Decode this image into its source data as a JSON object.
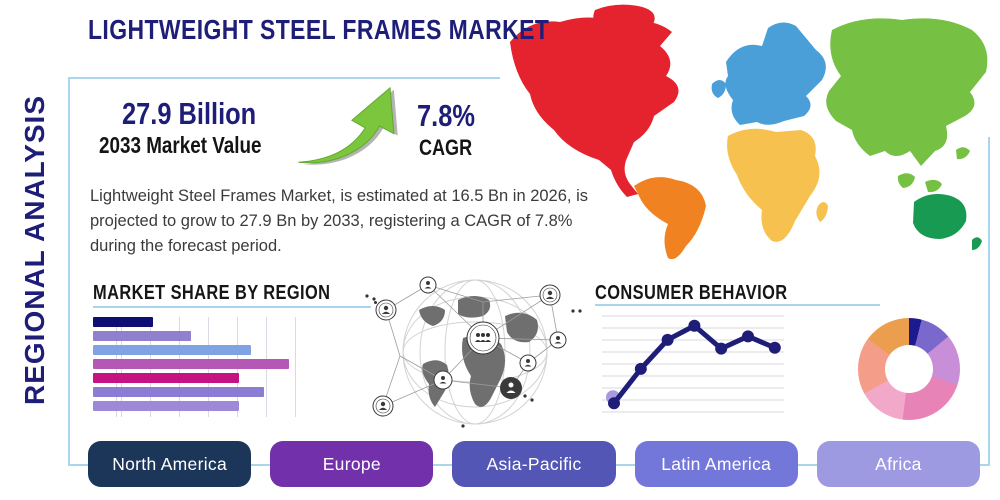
{
  "title": "LIGHTWEIGHT STEEL FRAMES MARKET",
  "sidebar_label": "REGIONAL ANALYSIS",
  "stats": {
    "market_value": "27.9 Billion",
    "market_value_label": "2033 Market Value",
    "cagr_value": "7.8%",
    "cagr_label": "CAGR"
  },
  "description": "Lightweight Steel Frames Market, is estimated at 16.5 Bn in 2026, is projected to grow to 27.9 Bn by 2033, registering a CAGR of 7.8% during the forecast period.",
  "sections": {
    "market_share_title": "MARKET SHARE BY REGION",
    "consumer_behavior_title": "CONSUMER BEHAVIOR"
  },
  "colors": {
    "navy_text": "#1e1e78",
    "panel_border": "#a9d6ea",
    "arrow_green": "#7cc63e"
  },
  "map": {
    "regions": [
      {
        "id": "north-america",
        "name": "North America",
        "color": "#e4232e"
      },
      {
        "id": "south-america",
        "name": "South America",
        "color": "#f08221"
      },
      {
        "id": "europe",
        "name": "Europe",
        "color": "#4a9fd8"
      },
      {
        "id": "africa",
        "name": "Africa",
        "color": "#f6c14e"
      },
      {
        "id": "asia",
        "name": "Asia",
        "color": "#76c043"
      },
      {
        "id": "australia",
        "name": "Australia",
        "color": "#199a52"
      }
    ]
  },
  "chart_data": [
    {
      "type": "bar",
      "title": "MARKET SHARE BY REGION",
      "orientation": "horizontal",
      "categories": [
        "",
        "",
        "",
        "",
        "",
        "",
        ""
      ],
      "values": [
        29,
        47,
        76,
        94,
        70,
        82,
        70
      ],
      "colors": [
        "#0e0e74",
        "#9180ce",
        "#7fa3e3",
        "#b457b5",
        "#c51383",
        "#8d7cd4",
        "#9d89d8"
      ],
      "xlim": [
        0,
        100
      ],
      "grid": "vertical"
    },
    {
      "type": "line",
      "title": "CONSUMER BEHAVIOR",
      "x": [
        1,
        2,
        3,
        4,
        5,
        6,
        7
      ],
      "values": [
        10,
        49,
        82,
        98,
        72,
        86,
        73
      ],
      "ylim": [
        0,
        110
      ],
      "line_color": "#1e1e78",
      "marker_color": "#1e1e78",
      "first_marker_halo": "#a89ade",
      "grid": "horizontal"
    },
    {
      "type": "pie",
      "style": "donut",
      "slices": [
        {
          "value": 4,
          "color": "#1b1b8f"
        },
        {
          "value": 10,
          "color": "#7a68cc"
        },
        {
          "value": 16,
          "color": "#c88fd8"
        },
        {
          "value": 22,
          "color": "#e883b8"
        },
        {
          "value": 15,
          "color": "#f2a8c8"
        },
        {
          "value": 18,
          "color": "#f49e8a"
        },
        {
          "value": 15,
          "color": "#eb9e4e"
        }
      ]
    }
  ],
  "region_buttons": [
    {
      "label": "North America",
      "color": "#1b3659"
    },
    {
      "label": "Europe",
      "color": "#7231aa"
    },
    {
      "label": "Asia-Pacific",
      "color": "#5356b4"
    },
    {
      "label": "Latin America",
      "color": "#7477da"
    },
    {
      "label": "Africa",
      "color": "#9d9ae1"
    }
  ]
}
